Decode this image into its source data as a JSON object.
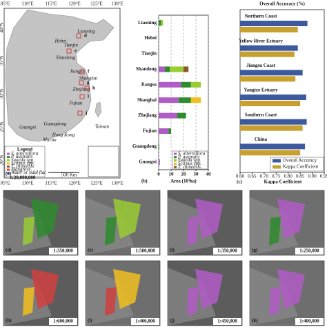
{
  "map": {
    "lon_labels": [
      "105°E",
      "110°E",
      "115°E",
      "120°E",
      "125°E",
      "130°E"
    ],
    "lat_labels": [
      "40°N",
      "35°N",
      "30°N",
      "25°N",
      "20°N"
    ],
    "regions": [
      "Liaoning",
      "Hebei",
      "Tianjin",
      "Shandong",
      "Jiangsu",
      "Shanghai",
      "Zhejiang",
      "Fujian",
      "Taiwan",
      "Guangdong",
      "Guangxi",
      "Hong Kong",
      "Macau",
      "Hainan"
    ],
    "sites": [
      "d",
      "e",
      "f",
      "g",
      "h",
      "i",
      "j",
      "k"
    ],
    "legend_title": "Legend",
    "legend": [
      {
        "name": "S. alterniflora",
        "color": "#b05cc6"
      },
      {
        "name": "P. australis",
        "color": "#2e8b2e"
      },
      {
        "name": "Suaeda spp.",
        "color": "#9acd32"
      },
      {
        "name": "Scirpus spp.",
        "color": "#f0c020"
      },
      {
        "name": "T. chinensis",
        "color": "#8b5a2b"
      },
      {
        "name": "Mangrove",
        "color": "#d04040"
      },
      {
        "name": "Water or tidal flat",
        "color": "#5a8ad0"
      }
    ],
    "panel": "(a)",
    "scale": "1:20,000,000",
    "scale_bar": "500 Km"
  },
  "chart_data": [
    {
      "type": "stacked_barh",
      "panel": "(b)",
      "xlabel": "Area (10³ha)",
      "categories": [
        "Liaoning",
        "Hebei",
        "Tianjin",
        "Shandong",
        "Jiangsu",
        "Shanghai",
        "Zhejiang",
        "Fujian",
        "Guangdong",
        "Guangxi"
      ],
      "series": [
        {
          "name": "S. alterniflora",
          "color": "#b05cc6",
          "values": [
            0,
            0,
            0,
            5,
            18,
            16,
            15,
            8,
            0,
            1
          ]
        },
        {
          "name": "P. australis",
          "color": "#2e8b2e",
          "values": [
            2,
            0,
            0,
            4,
            8,
            10,
            7,
            2,
            0.5,
            0
          ]
        },
        {
          "name": "Suaeda spp.",
          "color": "#9acd32",
          "values": [
            1.5,
            0,
            0,
            11,
            8,
            0,
            0,
            0,
            0,
            0
          ]
        },
        {
          "name": "Scirpus spp.",
          "color": "#f0c020",
          "values": [
            0,
            0,
            0,
            0,
            0,
            8,
            0,
            0,
            0,
            0
          ]
        },
        {
          "name": "T. chinensis",
          "color": "#8b5a2b",
          "values": [
            0,
            0,
            0,
            4,
            0,
            0,
            0,
            0,
            0,
            0
          ]
        }
      ],
      "xlim": [
        0,
        40
      ],
      "xticks": [
        0,
        10,
        20,
        30,
        40
      ],
      "grid": true
    },
    {
      "type": "grouped_barh",
      "panel": "(c)",
      "x2label": "Overall Accuracy (%)",
      "xlabel": "Kappa Coefficient",
      "categories": [
        "Northern Coast",
        "Yellow River Estuary",
        "Jiangsu Coast",
        "Yangtze Estuary",
        "Southern Coast",
        "China"
      ],
      "series": [
        {
          "name": "Overall Accuracy",
          "color": "#3d5a9e",
          "values": [
            0.88,
            0.84,
            0.86,
            0.875,
            0.877,
            0.87
          ]
        },
        {
          "name": "Kappa Coefficient",
          "color": "#c8a030",
          "values": [
            0.84,
            0.826,
            0.83,
            0.85,
            0.86,
            0.85
          ]
        }
      ],
      "xlim": [
        0.6,
        0.95
      ],
      "xticks": [
        {
          "value": 0.6,
          "label": "0.60"
        },
        {
          "value": 0.65,
          "label": "0.65"
        },
        {
          "value": 0.7,
          "label": "0.70"
        },
        {
          "value": 0.75,
          "label": "0.75"
        },
        {
          "value": 0.8,
          "label": "0.80"
        },
        {
          "value": 0.85,
          "label": "0.85"
        },
        {
          "value": 0.9,
          "label": "0.90"
        },
        {
          "value": 0.95,
          "label": "0.95"
        }
      ]
    }
  ],
  "panels": [
    {
      "label": "(d)",
      "scale": "1:350,000"
    },
    {
      "label": "(e)",
      "scale": "1:500,000"
    },
    {
      "label": "(f)",
      "scale": "1:350,000"
    },
    {
      "label": "(g)",
      "scale": "1:250,000"
    },
    {
      "label": "(h)",
      "scale": "1:600,000"
    },
    {
      "label": "(i)",
      "scale": "1:400,000"
    },
    {
      "label": "(j)",
      "scale": "1:450,000"
    },
    {
      "label": "(k)",
      "scale": "1:400,000"
    }
  ]
}
